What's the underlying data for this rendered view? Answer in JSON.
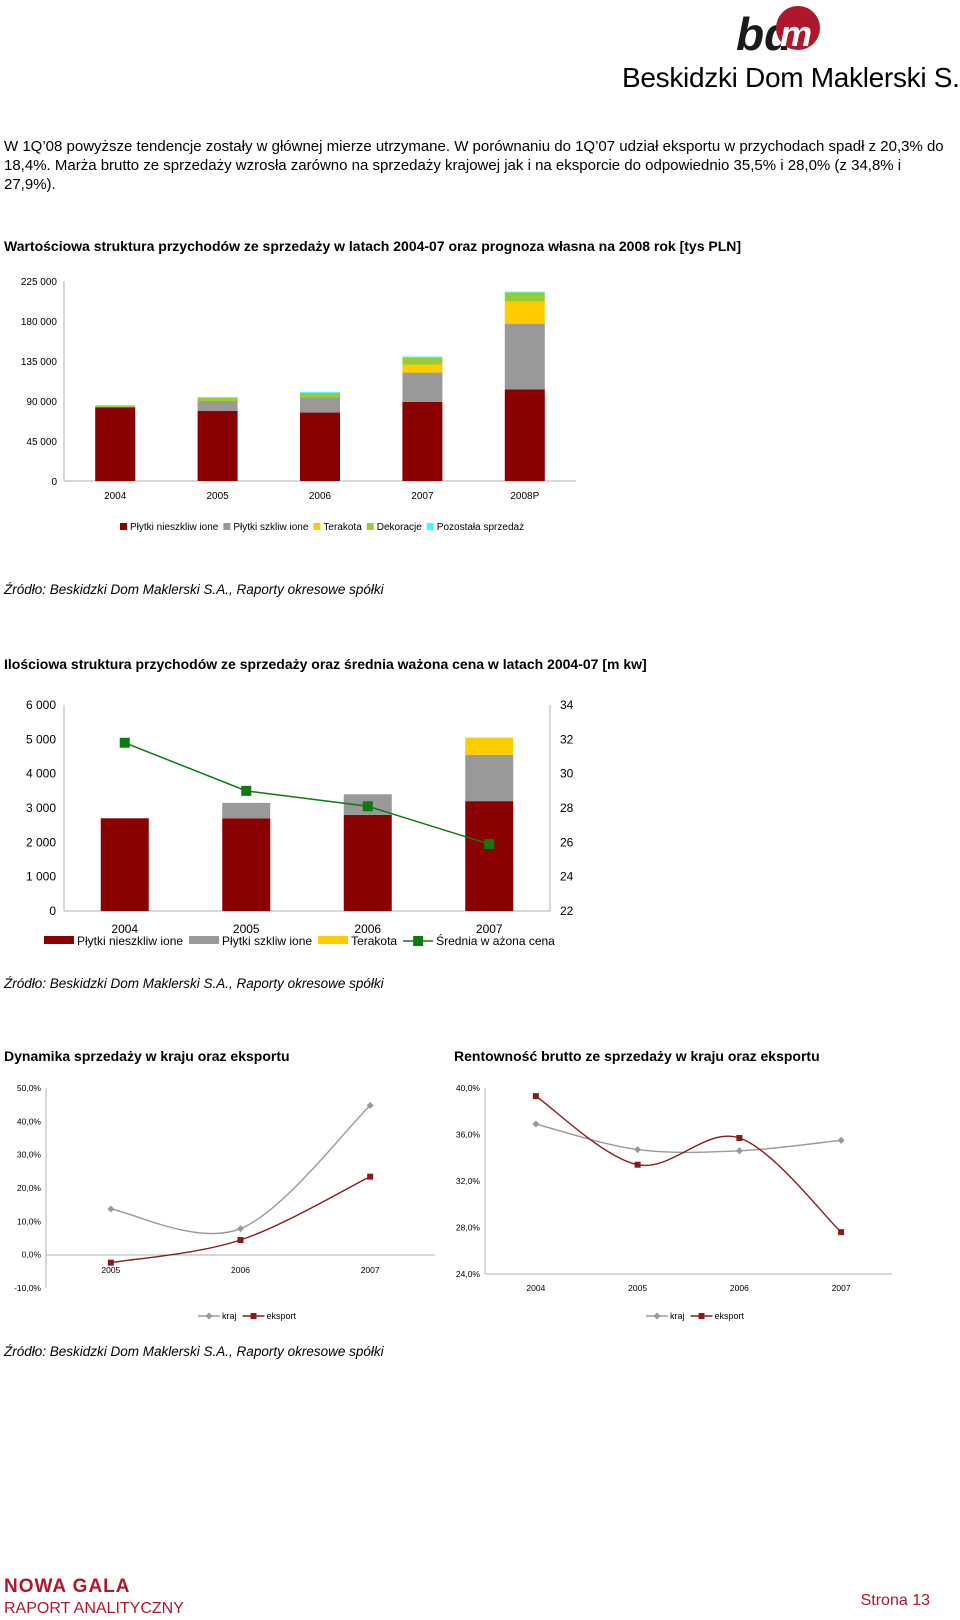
{
  "header": {
    "logo_mark": "bdm",
    "logo_text": "Beskidzki Dom Maklerski S.A."
  },
  "intro_paragraph": "W 1Q’08 powyższe tendencje zostały w głównej mierze utrzymane. W porównaniu do 1Q’07 udział eksportu w przychodach spadł z 20,3% do 18,4%. Marża brutto ze sprzedaży wzrosła zarówno na sprzedaży krajowej jak i na eksporcie do odpowiednio 35,5% i 28,0% (z 34,8% i 27,9%).",
  "charts": {
    "value_title": "Wartościowa struktura przychodów ze sprzedaży w latach 2004-07 oraz prognoza własna na 2008 rok [tys PLN]",
    "value_source": "Źródło: Beskidzki Dom Maklerski S.A., Raporty okresowe spółki",
    "qty_title": "Ilościowa struktura przychodów ze sprzedaży oraz średnia ważona cena w latach 2004-07 [m kw]",
    "qty_source": "Źródło: Beskidzki Dom Maklerski S.A., Raporty okresowe spółki",
    "dyn_title": "Dynamika sprzedaży w kraju oraz eksportu",
    "rent_title": "Rentowność brutto ze sprzedaży w kraju oraz eksportu",
    "bottom_source": "Źródło: Beskidzki Dom Maklerski S.A., Raporty okresowe spółki"
  },
  "chart_data": [
    {
      "type": "bar",
      "stacked": true,
      "categories": [
        "2004",
        "2005",
        "2006",
        "2007",
        "2008P"
      ],
      "series": [
        {
          "name": "Płytki nieszkliw ione",
          "color": "#8b0000",
          "values": [
            83000,
            79000,
            77000,
            89000,
            103000
          ]
        },
        {
          "name": "Płytki szkliw ione",
          "color": "#999999",
          "values": [
            0,
            11000,
            17000,
            33000,
            74000
          ]
        },
        {
          "name": "Terakota",
          "color": "#ffcc00",
          "values": [
            0,
            0,
            0,
            9000,
            25000
          ]
        },
        {
          "name": "Dekoracje",
          "color": "#99cc33",
          "values": [
            1500,
            3500,
            5000,
            8000,
            10000
          ]
        },
        {
          "name": "Pozostała sprzedaż",
          "color": "#33ffff",
          "values": [
            1000,
            1000,
            1000,
            1000,
            1000
          ]
        }
      ],
      "yticks": [
        "225 000",
        "180 000",
        "135 000",
        "90 000",
        "45 000",
        "0"
      ],
      "ylim": [
        0,
        225000
      ],
      "legend_position": "bottom"
    },
    {
      "type": "bar",
      "stacked": true,
      "categories": [
        "2004",
        "2005",
        "2006",
        "2007"
      ],
      "series": [
        {
          "name": "Płytki nieszkliw ione",
          "color": "#8b0000",
          "values": [
            2700,
            2700,
            2800,
            3200
          ]
        },
        {
          "name": "Płytki szkliw ione",
          "color": "#999999",
          "values": [
            0,
            450,
            600,
            1350
          ]
        },
        {
          "name": "Terakota",
          "color": "#ffcc00",
          "values": [
            0,
            0,
            0,
            500
          ]
        }
      ],
      "line_series": {
        "name": "Średnia w ażona cena",
        "color": "#0d7a0d",
        "axis": "right",
        "values": [
          31.8,
          29.0,
          28.1,
          25.9
        ]
      },
      "yticks": [
        "6 000",
        "5 000",
        "4 000",
        "3 000",
        "2 000",
        "1 000",
        "0"
      ],
      "ylim": [
        0,
        6000
      ],
      "y2ticks": [
        "34",
        "32",
        "30",
        "28",
        "26",
        "24",
        "22"
      ],
      "y2lim": [
        22,
        34
      ],
      "legend_position": "bottom"
    },
    {
      "type": "line",
      "categories": [
        "2005",
        "2006",
        "2007"
      ],
      "series": [
        {
          "name": "kraj",
          "color": "#999999",
          "values": [
            13.7,
            7.8,
            44.8
          ]
        },
        {
          "name": "eksport",
          "color": "#8b1a1a",
          "values": [
            -2.4,
            4.4,
            23.4
          ]
        }
      ],
      "yticks": [
        "50,0%",
        "40,0%",
        "30,0%",
        "20,0%",
        "10,0%",
        "0,0%",
        "-10,0%"
      ],
      "ylim": [
        -10,
        50
      ],
      "legend_position": "bottom"
    },
    {
      "type": "line",
      "categories": [
        "2004",
        "2005",
        "2006",
        "2007"
      ],
      "series": [
        {
          "name": "kraj",
          "color": "#999999",
          "values": [
            36.9,
            34.7,
            34.6,
            35.5
          ]
        },
        {
          "name": "eksport",
          "color": "#8b1a1a",
          "values": [
            39.3,
            33.4,
            35.7,
            27.6
          ]
        }
      ],
      "yticks": [
        "40,0%",
        "36,0%",
        "32,0%",
        "28,0%",
        "24,0%"
      ],
      "ylim": [
        24,
        40
      ],
      "legend_position": "bottom"
    }
  ],
  "footer": {
    "company": "NOWA GALA",
    "subtitle": "RAPORT ANALITYCZNY",
    "page": "Strona 13"
  }
}
